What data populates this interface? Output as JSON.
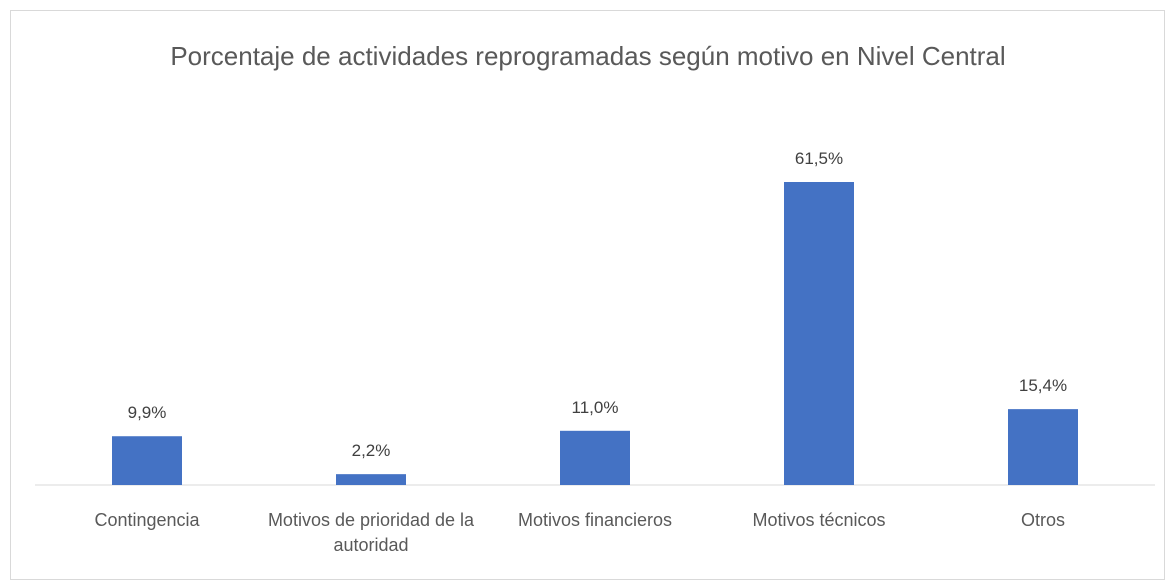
{
  "chart_data": {
    "type": "bar",
    "title": "Porcentaje de actividades reprogramadas según motivo en Nivel Central",
    "categories": [
      "Contingencia",
      "Motivos de prioridad de la autoridad",
      "Motivos financieros",
      "Motivos técnicos",
      "Otros"
    ],
    "values": [
      9.9,
      2.2,
      11.0,
      61.5,
      15.4
    ],
    "value_labels": [
      "9,9%",
      "2,2%",
      "11,0%",
      "61,5%",
      "15,4%"
    ],
    "color": "#4472c4"
  }
}
